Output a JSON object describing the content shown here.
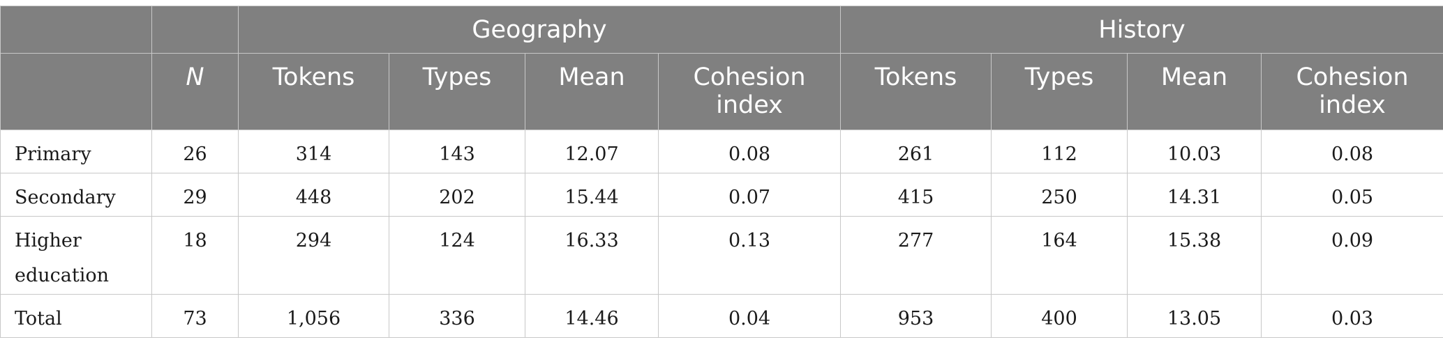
{
  "header": {
    "groups": [
      "Geography",
      "History"
    ],
    "n_label": "N",
    "sub_columns": [
      "Tokens",
      "Types",
      "Mean",
      "Cohesion index"
    ]
  },
  "rows": [
    {
      "label": "Primary",
      "n": "26",
      "geo": [
        "314",
        "143",
        "12.07",
        "0.08"
      ],
      "hist": [
        "261",
        "112",
        "10.03",
        "0.08"
      ]
    },
    {
      "label": "Secondary",
      "n": "29",
      "geo": [
        "448",
        "202",
        "15.44",
        "0.07"
      ],
      "hist": [
        "415",
        "250",
        "14.31",
        "0.05"
      ]
    },
    {
      "label": "Higher education",
      "n": "18",
      "geo": [
        "294",
        "124",
        "16.33",
        "0.13"
      ],
      "hist": [
        "277",
        "164",
        "15.38",
        "0.09"
      ]
    },
    {
      "label": "Total",
      "n": "73",
      "geo": [
        "1,056",
        "336",
        "14.46",
        "0.04"
      ],
      "hist": [
        "953",
        "400",
        "13.05",
        "0.03"
      ]
    }
  ]
}
